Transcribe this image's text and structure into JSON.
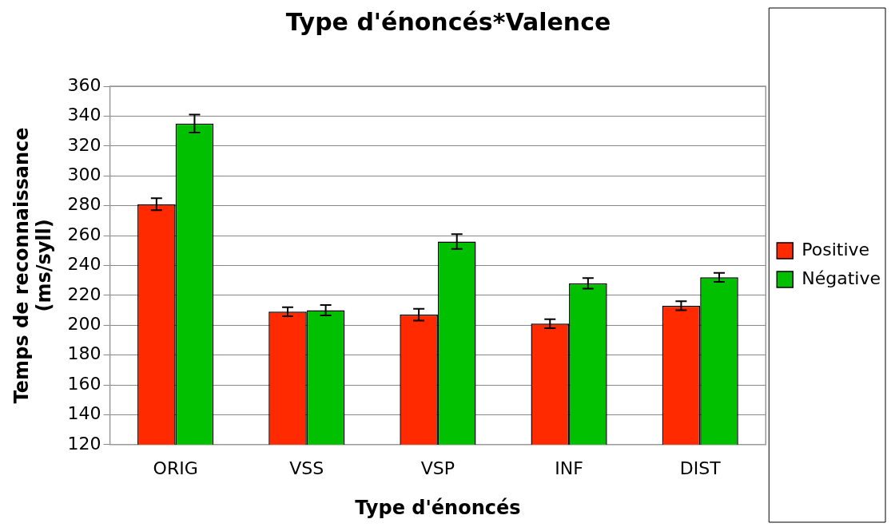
{
  "chart_data": {
    "type": "bar",
    "title": "Type d'énoncés*Valence",
    "xlabel": "Type d'énoncés",
    "ylabel": "Temps de reconnaissance (ms/syll)",
    "categories": [
      "ORIG",
      "VSS",
      "VSP",
      "INF",
      "DIST"
    ],
    "series": [
      {
        "name": "Positive",
        "color": "#ff2a00",
        "values": [
          281,
          209,
          207,
          201,
          213
        ],
        "errors": [
          4,
          3,
          4,
          3,
          3
        ]
      },
      {
        "name": "Négative",
        "color": "#00c000",
        "values": [
          335,
          210,
          256,
          228,
          232
        ],
        "errors": [
          6,
          3.5,
          5,
          3.5,
          3
        ]
      }
    ],
    "ylim": [
      120,
      360
    ],
    "yticks": [
      120,
      140,
      160,
      180,
      200,
      220,
      240,
      260,
      280,
      300,
      320,
      340,
      360
    ],
    "grid": "y",
    "legend": "right"
  }
}
